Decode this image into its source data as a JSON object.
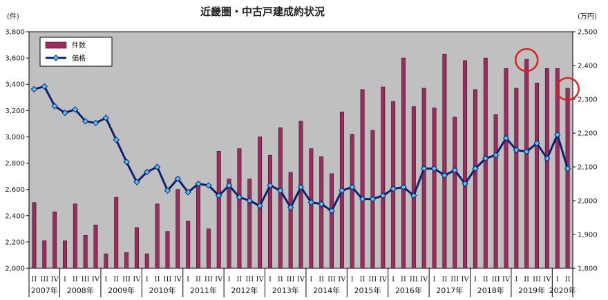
{
  "chart_data": {
    "type": "bar",
    "title": "近畿圏・中古戸建成約状況",
    "left_unit": "(件)",
    "right_unit": "(万円)",
    "left_ylim": [
      2000,
      3800
    ],
    "left_ticks": [
      "2,000",
      "2,200",
      "2,400",
      "2,600",
      "2,800",
      "3,000",
      "3,200",
      "3,400",
      "3,600",
      "3,800"
    ],
    "right_ylim": [
      1800,
      2500
    ],
    "right_ticks": [
      "1,800",
      "1,900",
      "2,000",
      "2,100",
      "2,200",
      "2,300",
      "2,400",
      "2,500"
    ],
    "grid": false,
    "legend_position": "top-left",
    "quarters": [
      "II",
      "III",
      "IV",
      "I",
      "II",
      "III",
      "IV",
      "I",
      "II",
      "III",
      "IV",
      "I",
      "II",
      "III",
      "IV",
      "I",
      "II",
      "III",
      "IV",
      "I",
      "II",
      "III",
      "IV",
      "I",
      "II",
      "III",
      "IV",
      "I",
      "II",
      "III",
      "IV",
      "I",
      "II",
      "III",
      "IV",
      "I",
      "II",
      "III",
      "IV",
      "I",
      "II",
      "III",
      "IV",
      "I",
      "II",
      "III",
      "IV",
      "I",
      "II",
      "III",
      "IV",
      "I",
      "II"
    ],
    "years": [
      {
        "label": "2007年",
        "first_index": 0,
        "last_index": 2
      },
      {
        "label": "2008年",
        "first_index": 3,
        "last_index": 6
      },
      {
        "label": "2009年",
        "first_index": 7,
        "last_index": 10
      },
      {
        "label": "2010年",
        "first_index": 11,
        "last_index": 14
      },
      {
        "label": "2011年",
        "first_index": 15,
        "last_index": 18
      },
      {
        "label": "2012年",
        "first_index": 19,
        "last_index": 22
      },
      {
        "label": "2013年",
        "first_index": 23,
        "last_index": 26
      },
      {
        "label": "2014年",
        "first_index": 27,
        "last_index": 30
      },
      {
        "label": "2015年",
        "first_index": 31,
        "last_index": 34
      },
      {
        "label": "2016年",
        "first_index": 35,
        "last_index": 38
      },
      {
        "label": "2017年",
        "first_index": 39,
        "last_index": 42
      },
      {
        "label": "2018年",
        "first_index": 43,
        "last_index": 46
      },
      {
        "label": "2019年",
        "first_index": 47,
        "last_index": 50
      },
      {
        "label": "2020年",
        "first_index": 51,
        "last_index": 52
      }
    ],
    "series": [
      {
        "name": "件数",
        "kind": "bar",
        "axis": "left",
        "color": "#9b2d5e",
        "values": [
          2500,
          2210,
          2430,
          2210,
          2490,
          2250,
          2330,
          2110,
          2540,
          2120,
          2310,
          2110,
          2490,
          2280,
          2600,
          2360,
          2640,
          2300,
          2890,
          2680,
          2910,
          2680,
          3000,
          2860,
          3070,
          2730,
          3120,
          2910,
          2850,
          2720,
          3190,
          3020,
          3360,
          3050,
          3380,
          3270,
          3600,
          3230,
          3370,
          3220,
          3630,
          3150,
          3580,
          3360,
          3600,
          3170,
          3520,
          3370,
          3590,
          3410,
          3520,
          3520,
          3370
        ]
      },
      {
        "name": "価格",
        "kind": "line",
        "axis": "right",
        "color": "#0d1f6e",
        "marker_color": "#4fc3f7",
        "values": [
          2330,
          2338,
          2280,
          2260,
          2270,
          2235,
          2230,
          2245,
          2180,
          2115,
          2055,
          2085,
          2100,
          2030,
          2065,
          2025,
          2050,
          2045,
          2015,
          2045,
          2010,
          2000,
          1985,
          2045,
          2030,
          1980,
          2040,
          1995,
          1990,
          1970,
          2030,
          2040,
          2005,
          2005,
          2015,
          2035,
          2040,
          2015,
          2095,
          2095,
          2075,
          2090,
          2050,
          2095,
          2125,
          2135,
          2185,
          2150,
          2145,
          2170,
          2125,
          2195,
          2095
        ]
      }
    ],
    "annotations": [
      {
        "shape": "circle",
        "color": "#e02020",
        "marks": "件数",
        "index": 48
      },
      {
        "shape": "circle",
        "color": "#e02020",
        "marks": "件数",
        "index": 52
      }
    ]
  }
}
